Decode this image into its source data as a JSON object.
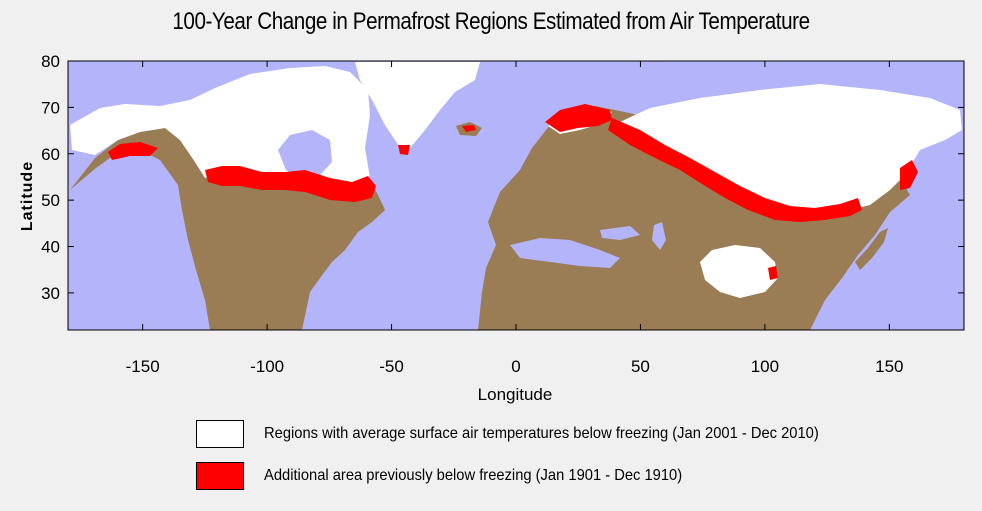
{
  "title": "100-Year Change in Permafrost Regions Estimated from Air Temperature",
  "axes": {
    "xlabel": "Longitude",
    "ylabel": "Latitude",
    "x_ticks": [
      "-150",
      "-100",
      "-50",
      "0",
      "50",
      "100",
      "150"
    ],
    "y_ticks": [
      "80",
      "70",
      "60",
      "50",
      "40",
      "30"
    ],
    "xlim": [
      -180,
      180
    ],
    "ylim": [
      22,
      80
    ]
  },
  "legend": [
    {
      "label": "Regions with average surface air temperatures below freezing (Jan 2001 - Dec 2010)",
      "color": "#ffffff"
    },
    {
      "label": "Additional area previously below freezing (Jan 1901 - Dec 1910)",
      "color": "#ff0000"
    }
  ],
  "colors": {
    "ocean": "#b4b4fa",
    "land": "#9a7c55",
    "below_freezing": "#ffffff",
    "previously_below_freezing": "#ff0000"
  }
}
